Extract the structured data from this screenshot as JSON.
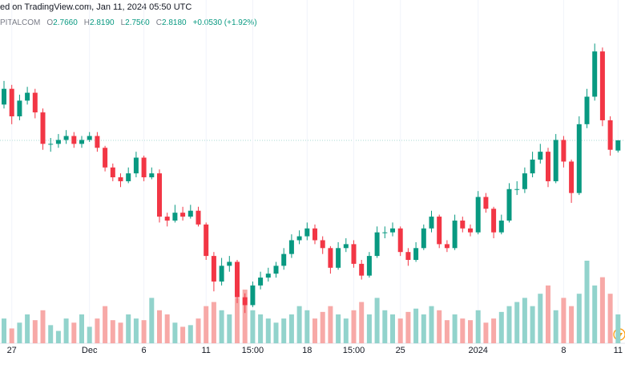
{
  "header": {
    "source": "ed on TradingView.com, Jan 11, 2024 05:50 UTC",
    "symbol": "PITALCOM",
    "fields": [
      {
        "key": "O",
        "value": "2.7660"
      },
      {
        "key": "H",
        "value": "2.8190"
      },
      {
        "key": "L",
        "value": "2.7560"
      },
      {
        "key": "C",
        "value": "2.8180"
      }
    ],
    "change": "+0.0530 (+1.92%)"
  },
  "chart_data": {
    "type": "candlestick",
    "categories": [
      null,
      "27",
      null,
      null,
      null,
      null,
      null,
      null,
      null,
      null,
      null,
      "Dec",
      null,
      null,
      null,
      null,
      null,
      null,
      "6",
      null,
      null,
      null,
      null,
      null,
      null,
      null,
      "11",
      null,
      null,
      null,
      null,
      null,
      "15:00",
      null,
      null,
      null,
      null,
      null,
      null,
      "18",
      null,
      null,
      null,
      null,
      null,
      "15:00",
      null,
      null,
      null,
      null,
      null,
      "25",
      null,
      null,
      null,
      null,
      null,
      null,
      null,
      null,
      null,
      "2024",
      null,
      null,
      null,
      null,
      null,
      null,
      null,
      null,
      null,
      null,
      "8",
      null,
      null,
      null,
      null,
      null,
      null,
      "11"
    ],
    "open": [
      3.0,
      3.08,
      2.94,
      3.02,
      3.06,
      2.96,
      2.8,
      2.8,
      2.82,
      2.84,
      2.8,
      2.82,
      2.84,
      2.78,
      2.68,
      2.63,
      2.61,
      2.65,
      2.73,
      2.63,
      2.65,
      2.43,
      2.41,
      2.45,
      2.43,
      2.46,
      2.39,
      2.23,
      2.1,
      2.18,
      2.2,
      2.02,
      1.98,
      2.08,
      2.12,
      2.14,
      2.18,
      2.24,
      2.31,
      2.33,
      2.37,
      2.31,
      2.27,
      2.17,
      2.27,
      2.29,
      2.19,
      2.13,
      2.23,
      2.35,
      2.35,
      2.37,
      2.25,
      2.21,
      2.27,
      2.37,
      2.43,
      2.29,
      2.27,
      2.41,
      2.37,
      2.35,
      2.53,
      2.47,
      2.35,
      2.41,
      2.57,
      2.57,
      2.65,
      2.72,
      2.76,
      2.61,
      2.82,
      2.71,
      2.55,
      2.9,
      3.04,
      3.27,
      2.92,
      2.766
    ],
    "high": [
      3.12,
      3.1,
      3.05,
      3.09,
      3.08,
      2.98,
      2.83,
      2.85,
      2.87,
      2.86,
      2.84,
      2.86,
      2.86,
      2.79,
      2.7,
      2.65,
      2.68,
      2.76,
      2.74,
      2.68,
      2.67,
      2.45,
      2.49,
      2.48,
      2.49,
      2.48,
      2.4,
      2.25,
      2.22,
      2.23,
      2.21,
      2.04,
      2.1,
      2.15,
      2.17,
      2.2,
      2.27,
      2.34,
      2.36,
      2.4,
      2.39,
      2.33,
      2.28,
      2.3,
      2.32,
      2.31,
      2.21,
      2.25,
      2.38,
      2.38,
      2.4,
      2.38,
      2.27,
      2.3,
      2.39,
      2.46,
      2.44,
      2.31,
      2.44,
      2.43,
      2.39,
      2.56,
      2.55,
      2.48,
      2.44,
      2.6,
      2.61,
      2.68,
      2.76,
      2.8,
      2.78,
      2.85,
      2.84,
      2.72,
      2.94,
      3.08,
      3.31,
      3.29,
      2.94,
      2.819
    ],
    "low": [
      2.98,
      2.9,
      2.92,
      3.0,
      2.93,
      2.77,
      2.76,
      2.78,
      2.8,
      2.78,
      2.78,
      2.81,
      2.76,
      2.66,
      2.61,
      2.58,
      2.6,
      2.63,
      2.61,
      2.62,
      2.4,
      2.38,
      2.4,
      2.41,
      2.42,
      2.38,
      2.21,
      2.05,
      2.08,
      2.15,
      1.99,
      1.94,
      1.97,
      2.06,
      2.1,
      2.12,
      2.16,
      2.22,
      2.29,
      2.31,
      2.29,
      2.24,
      2.14,
      2.16,
      2.25,
      2.17,
      2.11,
      2.12,
      2.22,
      2.32,
      2.33,
      2.23,
      2.18,
      2.2,
      2.26,
      2.35,
      2.27,
      2.25,
      2.26,
      2.35,
      2.33,
      2.34,
      2.45,
      2.32,
      2.34,
      2.4,
      2.54,
      2.55,
      2.63,
      2.7,
      2.58,
      2.6,
      2.68,
      2.5,
      2.54,
      2.88,
      3.02,
      2.89,
      2.74,
      2.756
    ],
    "close": [
      3.08,
      2.94,
      3.02,
      3.06,
      2.96,
      2.8,
      2.8,
      2.82,
      2.84,
      2.8,
      2.82,
      2.84,
      2.78,
      2.68,
      2.63,
      2.61,
      2.65,
      2.73,
      2.63,
      2.65,
      2.43,
      2.41,
      2.45,
      2.43,
      2.46,
      2.39,
      2.23,
      2.1,
      2.18,
      2.2,
      2.02,
      1.98,
      2.08,
      2.12,
      2.14,
      2.18,
      2.24,
      2.31,
      2.33,
      2.37,
      2.31,
      2.27,
      2.17,
      2.27,
      2.29,
      2.19,
      2.13,
      2.23,
      2.35,
      2.35,
      2.37,
      2.25,
      2.21,
      2.27,
      2.37,
      2.43,
      2.29,
      2.27,
      2.41,
      2.37,
      2.35,
      2.53,
      2.47,
      2.35,
      2.41,
      2.57,
      2.57,
      2.65,
      2.72,
      2.76,
      2.61,
      2.82,
      2.71,
      2.55,
      2.9,
      3.04,
      3.27,
      2.92,
      2.77,
      2.818
    ],
    "volume": [
      30,
      18,
      25,
      35,
      28,
      40,
      22,
      15,
      30,
      25,
      35,
      20,
      30,
      45,
      28,
      25,
      35,
      30,
      28,
      55,
      40,
      35,
      25,
      20,
      22,
      30,
      45,
      50,
      40,
      35,
      55,
      65,
      40,
      35,
      30,
      25,
      30,
      35,
      45,
      40,
      30,
      38,
      45,
      35,
      30,
      40,
      50,
      35,
      55,
      40,
      35,
      30,
      38,
      42,
      35,
      45,
      40,
      28,
      35,
      30,
      28,
      40,
      25,
      30,
      38,
      45,
      50,
      55,
      45,
      60,
      70,
      40,
      55,
      45,
      60,
      100,
      70,
      80,
      60,
      35
    ],
    "ylim": [
      1.9,
      3.45
    ],
    "vlim": [
      0,
      100
    ],
    "up_color": "#089981",
    "down_color": "#f23645",
    "volume_up_color": "#92d3cc",
    "volume_down_color": "#f7a9a7",
    "grid": true
  }
}
